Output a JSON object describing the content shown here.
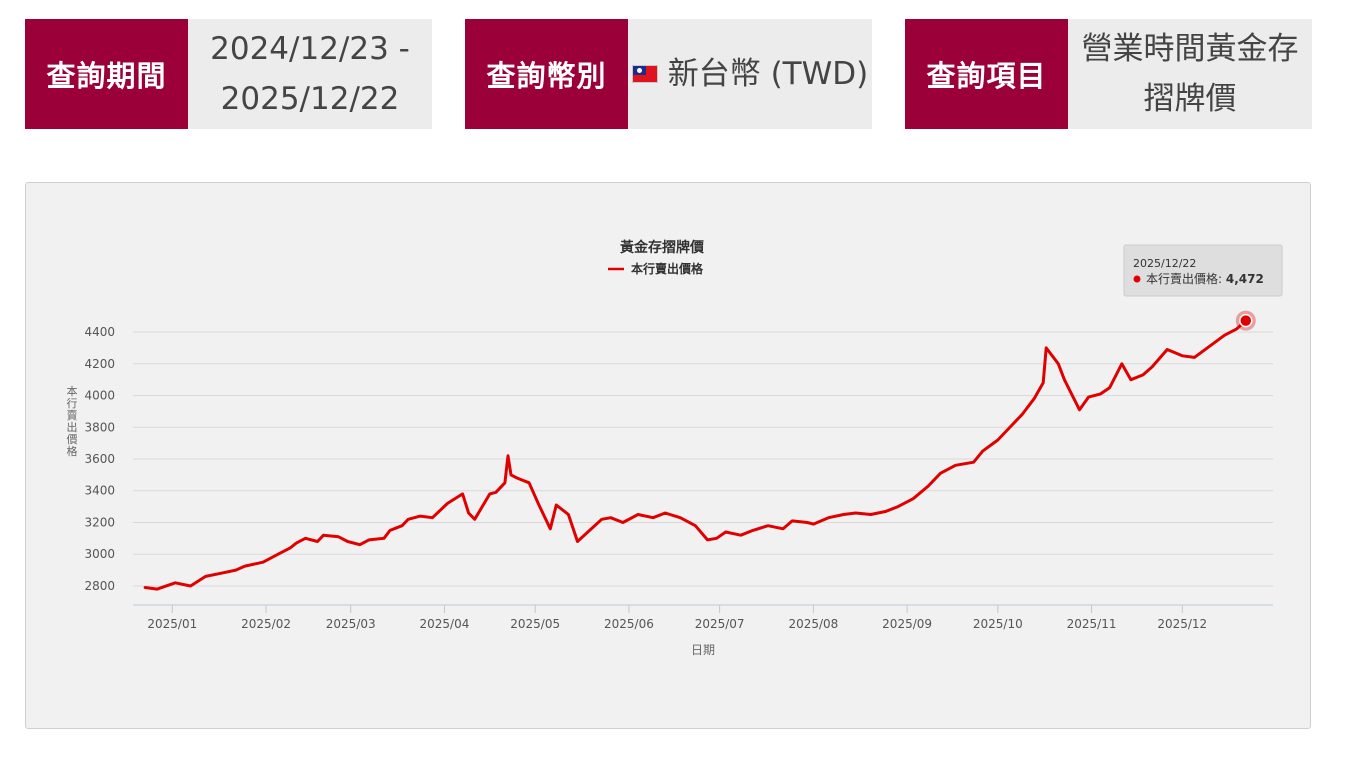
{
  "filters": {
    "period": {
      "label": "查詢期間",
      "value_line1": "2024/12/23 -",
      "value_line2": "2025/12/22"
    },
    "currency": {
      "label": "查詢幣別",
      "value": "新台幣 (TWD)",
      "icon": "taiwan-flag-icon"
    },
    "item": {
      "label": "查詢項目",
      "value_line1": "營業時間黃金存",
      "value_line2": "摺牌價"
    }
  },
  "colors": {
    "accent": "#9b0038",
    "series": "#e00000"
  },
  "chart_data": {
    "type": "line",
    "title": "黃金存摺牌價",
    "xlabel": "日期",
    "ylabel": "本行賣出價格",
    "legend": {
      "position": "top-center",
      "entries": [
        "本行賣出價格"
      ]
    },
    "grid": true,
    "ylim": [
      2680,
      4520
    ],
    "y_ticks": [
      2800,
      3000,
      3200,
      3400,
      3600,
      3800,
      4000,
      4200,
      4400
    ],
    "x_ticks": [
      "2025/01",
      "2025/02",
      "2025/03",
      "2025/04",
      "2025/05",
      "2025/06",
      "2025/07",
      "2025/08",
      "2025/09",
      "2025/10",
      "2025/11",
      "2025/12"
    ],
    "tooltip": {
      "date": "2025/12/22",
      "series": "本行賣出價格",
      "value": "4,472"
    },
    "series": [
      {
        "name": "本行賣出價格",
        "x": [
          "2024-12-23",
          "2024-12-27",
          "2025-01-02",
          "2025-01-07",
          "2025-01-12",
          "2025-01-17",
          "2025-01-22",
          "2025-01-25",
          "2025-01-31",
          "2025-02-05",
          "2025-02-09",
          "2025-02-11",
          "2025-02-14",
          "2025-02-18",
          "2025-02-20",
          "2025-02-25",
          "2025-02-28",
          "2025-03-04",
          "2025-03-07",
          "2025-03-12",
          "2025-03-14",
          "2025-03-18",
          "2025-03-20",
          "2025-03-24",
          "2025-03-28",
          "2025-04-02",
          "2025-04-07",
          "2025-04-09",
          "2025-04-11",
          "2025-04-16",
          "2025-04-18",
          "2025-04-21",
          "2025-04-22",
          "2025-04-23",
          "2025-04-25",
          "2025-04-29",
          "2025-05-02",
          "2025-05-06",
          "2025-05-08",
          "2025-05-12",
          "2025-05-15",
          "2025-05-19",
          "2025-05-23",
          "2025-05-26",
          "2025-05-30",
          "2025-06-04",
          "2025-06-09",
          "2025-06-13",
          "2025-06-18",
          "2025-06-23",
          "2025-06-27",
          "2025-06-30",
          "2025-07-03",
          "2025-07-08",
          "2025-07-12",
          "2025-07-17",
          "2025-07-22",
          "2025-07-25",
          "2025-07-30",
          "2025-08-01",
          "2025-08-06",
          "2025-08-11",
          "2025-08-15",
          "2025-08-20",
          "2025-08-25",
          "2025-08-29",
          "2025-09-03",
          "2025-09-08",
          "2025-09-12",
          "2025-09-17",
          "2025-09-23",
          "2025-09-26",
          "2025-10-01",
          "2025-10-06",
          "2025-10-09",
          "2025-10-13",
          "2025-10-16",
          "2025-10-17",
          "2025-10-21",
          "2025-10-23",
          "2025-10-28",
          "2025-10-31",
          "2025-11-04",
          "2025-11-07",
          "2025-11-11",
          "2025-11-14",
          "2025-11-18",
          "2025-11-21",
          "2025-11-26",
          "2025-12-01",
          "2025-12-05",
          "2025-12-10",
          "2025-12-15",
          "2025-12-19",
          "2025-12-22"
        ],
        "values": [
          2790,
          2780,
          2820,
          2800,
          2860,
          2880,
          2900,
          2925,
          2950,
          3000,
          3040,
          3070,
          3100,
          3080,
          3120,
          3110,
          3080,
          3060,
          3090,
          3100,
          3150,
          3180,
          3220,
          3240,
          3230,
          3320,
          3380,
          3260,
          3220,
          3380,
          3390,
          3450,
          3620,
          3500,
          3480,
          3450,
          3320,
          3160,
          3310,
          3250,
          3080,
          3150,
          3220,
          3230,
          3200,
          3250,
          3230,
          3260,
          3230,
          3180,
          3090,
          3100,
          3140,
          3120,
          3150,
          3180,
          3160,
          3210,
          3200,
          3190,
          3230,
          3250,
          3260,
          3250,
          3270,
          3300,
          3350,
          3430,
          3510,
          3560,
          3580,
          3650,
          3720,
          3820,
          3880,
          3980,
          4080,
          4300,
          4200,
          4100,
          3910,
          3990,
          4010,
          4050,
          4200,
          4100,
          4130,
          4180,
          4290,
          4250,
          4240,
          4310,
          4380,
          4420,
          4472
        ]
      }
    ]
  }
}
